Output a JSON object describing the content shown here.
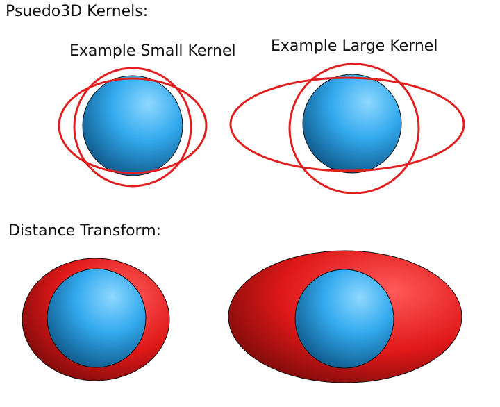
{
  "sections": {
    "kernels": {
      "title": "Psuedo3D Kernels:",
      "small_label": "Example Small Kernel",
      "large_label": "Example Large Kernel"
    },
    "distance": {
      "title": "Distance Transform:"
    }
  },
  "colors": {
    "sphere_light": "#8fd8ff",
    "sphere_mid": "#33aaee",
    "sphere_dark": "#0a4f7e",
    "kernel_stroke": "#e02020",
    "shell_light": "#ff5a5a",
    "shell_mid": "#e01818",
    "shell_dark": "#6a0808",
    "outline": "#111111"
  }
}
